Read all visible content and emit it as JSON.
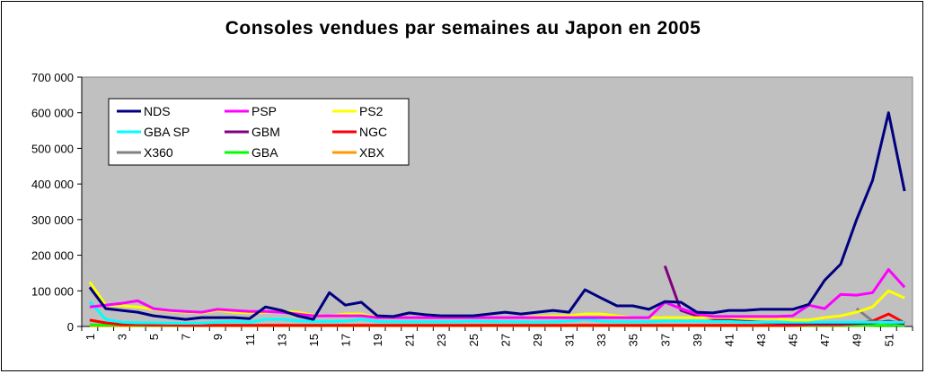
{
  "chart_data": {
    "type": "line",
    "title": "Consoles vendues par semaines au Japon en 2005",
    "xlabel": "",
    "ylabel": "",
    "ylim": [
      0,
      700000
    ],
    "y_ticks": [
      "0",
      "100 000",
      "200 000",
      "300 000",
      "400 000",
      "500 000",
      "600 000",
      "700 000"
    ],
    "x_tick_labels": [
      "1",
      "3",
      "5",
      "7",
      "9",
      "11",
      "13",
      "15",
      "17",
      "19",
      "21",
      "23",
      "25",
      "27",
      "29",
      "31",
      "33",
      "35",
      "37",
      "39",
      "41",
      "43",
      "45",
      "47",
      "49",
      "51"
    ],
    "x": [
      1,
      2,
      3,
      4,
      5,
      6,
      7,
      8,
      9,
      10,
      11,
      12,
      13,
      14,
      15,
      16,
      17,
      18,
      19,
      20,
      21,
      22,
      23,
      24,
      25,
      26,
      27,
      28,
      29,
      30,
      31,
      32,
      33,
      34,
      35,
      36,
      37,
      38,
      39,
      40,
      41,
      42,
      43,
      44,
      45,
      46,
      47,
      48,
      49,
      50,
      51,
      52
    ],
    "plot_background": "#c0c0c0",
    "legend_position": "top-left",
    "grid": false,
    "series": [
      {
        "name": "NDS",
        "color": "#000080",
        "values": [
          110000,
          50000,
          45000,
          40000,
          30000,
          25000,
          20000,
          25000,
          25000,
          25000,
          22000,
          55000,
          45000,
          30000,
          20000,
          95000,
          60000,
          68000,
          30000,
          28000,
          38000,
          33000,
          30000,
          30000,
          30000,
          35000,
          40000,
          35000,
          40000,
          45000,
          40000,
          103000,
          80000,
          58000,
          58000,
          48000,
          70000,
          68000,
          40000,
          38000,
          45000,
          45000,
          48000,
          48000,
          48000,
          62000,
          130000,
          175000,
          300000,
          410000,
          600000,
          380000
        ]
      },
      {
        "name": "PSP",
        "color": "#ff00ff",
        "values": [
          55000,
          60000,
          65000,
          72000,
          50000,
          45000,
          42000,
          40000,
          48000,
          45000,
          42000,
          42000,
          40000,
          35000,
          30000,
          30000,
          30000,
          30000,
          25000,
          25000,
          25000,
          25000,
          25000,
          25000,
          25000,
          25000,
          25000,
          25000,
          25000,
          25000,
          25000,
          25000,
          25000,
          25000,
          25000,
          25000,
          68000,
          50000,
          35000,
          28000,
          28000,
          28000,
          28000,
          28000,
          30000,
          60000,
          50000,
          90000,
          88000,
          95000,
          160000,
          110000
        ]
      },
      {
        "name": "PS2",
        "color": "#ffff00",
        "values": [
          125000,
          60000,
          58000,
          55000,
          48000,
          43000,
          40000,
          38000,
          45000,
          40000,
          38000,
          40000,
          42000,
          40000,
          32000,
          30000,
          35000,
          35000,
          25000,
          25000,
          25000,
          25000,
          25000,
          25000,
          25000,
          25000,
          25000,
          25000,
          28000,
          30000,
          30000,
          35000,
          35000,
          30000,
          25000,
          25000,
          25000,
          25000,
          25000,
          25000,
          25000,
          22000,
          22000,
          22000,
          18000,
          18000,
          25000,
          30000,
          40000,
          55000,
          100000,
          80000
        ]
      },
      {
        "name": "GBA SP",
        "color": "#00ffff",
        "values": [
          70000,
          20000,
          12000,
          10000,
          10000,
          9000,
          9000,
          9000,
          12000,
          14000,
          12000,
          20000,
          20000,
          16000,
          14000,
          14000,
          15000,
          20000,
          14000,
          13000,
          13000,
          13000,
          13000,
          13000,
          15000,
          14000,
          13000,
          13000,
          12000,
          13000,
          15000,
          20000,
          15000,
          13000,
          13000,
          13000,
          15000,
          15000,
          15000,
          14000,
          14000,
          12000,
          12000,
          12000,
          12000,
          12000,
          12000,
          12000,
          12000,
          12000,
          12000,
          12000
        ]
      },
      {
        "name": "GBM",
        "color": "#800080",
        "values": [
          null,
          null,
          null,
          null,
          null,
          null,
          null,
          null,
          null,
          null,
          null,
          null,
          null,
          null,
          null,
          null,
          null,
          null,
          null,
          null,
          null,
          null,
          null,
          null,
          null,
          null,
          null,
          null,
          null,
          null,
          null,
          null,
          null,
          null,
          null,
          null,
          170000,
          45000,
          30000,
          22000,
          18000,
          15000,
          12000,
          10000,
          8000,
          8000,
          8000,
          8000,
          8000,
          10000,
          15000,
          8000
        ]
      },
      {
        "name": "NGC",
        "color": "#ff0000",
        "values": [
          18000,
          10000,
          5000,
          5000,
          4000,
          4000,
          3000,
          3000,
          3000,
          3000,
          3000,
          3000,
          3000,
          3000,
          3000,
          3000,
          3000,
          3000,
          3000,
          3000,
          3000,
          3000,
          3000,
          3000,
          3000,
          3000,
          3000,
          3000,
          3000,
          3000,
          3000,
          3000,
          3000,
          3000,
          3000,
          3000,
          3000,
          3000,
          3000,
          3000,
          3000,
          3000,
          3000,
          3000,
          3000,
          5000,
          5000,
          5000,
          8000,
          15000,
          35000,
          10000
        ]
      },
      {
        "name": "X360",
        "color": "#808080",
        "values": [
          null,
          null,
          null,
          null,
          null,
          null,
          null,
          null,
          null,
          null,
          null,
          null,
          null,
          null,
          null,
          null,
          null,
          null,
          null,
          null,
          null,
          null,
          null,
          null,
          null,
          null,
          null,
          null,
          null,
          null,
          null,
          null,
          null,
          null,
          null,
          null,
          null,
          null,
          null,
          null,
          null,
          null,
          null,
          null,
          null,
          null,
          null,
          null,
          50000,
          15000,
          10000,
          8000
        ]
      },
      {
        "name": "GBA",
        "color": "#00ff00",
        "values": [
          5000,
          4000,
          4000,
          3000,
          3000,
          3000,
          3000,
          3000,
          3000,
          3000,
          3000,
          3000,
          3000,
          3000,
          3000,
          3000,
          3000,
          3000,
          3000,
          3000,
          3000,
          3000,
          3000,
          3000,
          3000,
          3000,
          3000,
          3000,
          3000,
          3000,
          3000,
          3000,
          3000,
          3000,
          3000,
          3000,
          3000,
          3000,
          3000,
          3000,
          3000,
          3000,
          3000,
          3000,
          3000,
          3000,
          3000,
          3000,
          3000,
          3000,
          3000,
          3000
        ]
      },
      {
        "name": "XBX",
        "color": "#ff9900",
        "values": [
          2000,
          2000,
          2000,
          2000,
          2000,
          2000,
          2000,
          2000,
          2000,
          2000,
          2000,
          2000,
          2000,
          2000,
          2000,
          2000,
          2000,
          2000,
          2000,
          2000,
          2000,
          2000,
          2000,
          2000,
          2000,
          2000,
          2000,
          2000,
          2000,
          2000,
          2000,
          2000,
          2000,
          2000,
          2000,
          2000,
          2000,
          2000,
          2000,
          2000,
          2000,
          2000,
          2000,
          2000,
          2000,
          2000,
          2000,
          2000,
          2000,
          3000,
          5000,
          3000
        ]
      }
    ]
  }
}
